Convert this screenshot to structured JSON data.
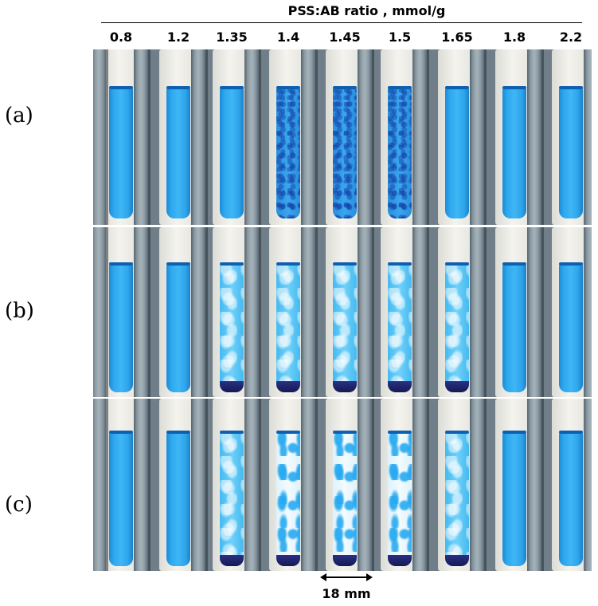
{
  "header": {
    "title": "PSS:AB ratio , mmol/g"
  },
  "ratios": [
    "0.8",
    "1.2",
    "1.35",
    "1.4",
    "1.45",
    "1.5",
    "1.65",
    "1.8",
    "2.2"
  ],
  "rows": [
    {
      "label": "(a)",
      "tubes": [
        "clear",
        "clear",
        "clear",
        "speckle",
        "speckle",
        "speckle",
        "clear",
        "clear",
        "clear"
      ],
      "sediment": [
        false,
        false,
        false,
        false,
        false,
        false,
        false,
        false,
        false
      ]
    },
    {
      "label": "(b)",
      "tubes": [
        "clear",
        "clear",
        "floc",
        "floc",
        "floc",
        "floc",
        "floc",
        "clear",
        "clear"
      ],
      "sediment": [
        false,
        false,
        true,
        true,
        true,
        true,
        true,
        false,
        false
      ]
    },
    {
      "label": "(c)",
      "tubes": [
        "clear",
        "clear",
        "floc",
        "clearfloc",
        "clearfloc",
        "clearfloc",
        "floc",
        "clear",
        "clear"
      ],
      "sediment": [
        false,
        false,
        true,
        true,
        true,
        true,
        true,
        false,
        false
      ]
    }
  ],
  "scale_bar": {
    "label": "18 mm"
  },
  "colors": {
    "solution": "#2ea8ee",
    "sediment": "#141a52",
    "rack": "#8c9ba4"
  }
}
